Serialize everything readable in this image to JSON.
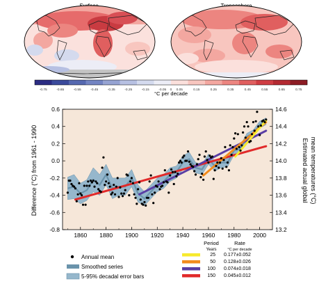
{
  "maps": {
    "left_title": "Surface",
    "right_title": "Troposphere",
    "colorbar_label": "°C per decade",
    "colorbar_ticks": [
      "-0.75",
      "-0.65",
      "-0.55",
      "-0.45",
      "-0.35",
      "-0.25",
      "-0.15",
      "-0.05",
      "0",
      "0.05",
      "0.15",
      "0.25",
      "0.35",
      "0.45",
      "0.55",
      "0.65",
      "0.75"
    ],
    "colorbar_colors": [
      "#2b2c83",
      "#3b4a9c",
      "#5568b0",
      "#7384c2",
      "#96a3d2",
      "#b7c0e2",
      "#d4daee",
      "#ecedf6",
      "#fbe0dc",
      "#f8c6bf",
      "#f3a7a0",
      "#ec8580",
      "#e05f5f",
      "#cf3d43",
      "#b42a32",
      "#8c1c24"
    ]
  },
  "chart_data": {
    "type": "scatter",
    "xlabel": "",
    "ylabel": "Difference (°C) from 1961 - 1990",
    "ylabel_right": "Estimated actual global mean temperatures (°C)",
    "xlim": [
      1846,
      2010
    ],
    "ylim": [
      -0.8,
      0.6
    ],
    "ylim_right": [
      13.2,
      14.6
    ],
    "xticks": [
      "1860",
      "1880",
      "1900",
      "1920",
      "1940",
      "1960",
      "1980",
      "2000"
    ],
    "yticks": [
      "-0.8",
      "-0.6",
      "-0.4",
      "-0.2",
      "0.0",
      "0.2",
      "0.4",
      "0.6"
    ],
    "yticks_right": [
      "13.2",
      "13.4",
      "13.6",
      "13.8",
      "14.0",
      "14.2",
      "14.4",
      "14.6"
    ],
    "annual_mean": {
      "x": [
        1850,
        1851,
        1852,
        1853,
        1854,
        1855,
        1856,
        1857,
        1858,
        1859,
        1860,
        1861,
        1862,
        1863,
        1864,
        1865,
        1866,
        1867,
        1868,
        1869,
        1870,
        1871,
        1872,
        1873,
        1874,
        1875,
        1876,
        1877,
        1878,
        1879,
        1880,
        1881,
        1882,
        1883,
        1884,
        1885,
        1886,
        1887,
        1888,
        1889,
        1890,
        1891,
        1892,
        1893,
        1894,
        1895,
        1896,
        1897,
        1898,
        1899,
        1900,
        1901,
        1902,
        1903,
        1904,
        1905,
        1906,
        1907,
        1908,
        1909,
        1910,
        1911,
        1912,
        1913,
        1914,
        1915,
        1916,
        1917,
        1918,
        1919,
        1920,
        1921,
        1922,
        1923,
        1924,
        1925,
        1926,
        1927,
        1928,
        1929,
        1930,
        1931,
        1932,
        1933,
        1934,
        1935,
        1936,
        1937,
        1938,
        1939,
        1940,
        1941,
        1942,
        1943,
        1944,
        1945,
        1946,
        1947,
        1948,
        1949,
        1950,
        1951,
        1952,
        1953,
        1954,
        1955,
        1956,
        1957,
        1958,
        1959,
        1960,
        1961,
        1962,
        1963,
        1964,
        1965,
        1966,
        1967,
        1968,
        1969,
        1970,
        1971,
        1972,
        1973,
        1974,
        1975,
        1976,
        1977,
        1978,
        1979,
        1980,
        1981,
        1982,
        1983,
        1984,
        1985,
        1986,
        1987,
        1988,
        1989,
        1990,
        1991,
        1992,
        1993,
        1994,
        1995,
        1996,
        1997,
        1998,
        1999,
        2000,
        2001,
        2002,
        2003,
        2004,
        2005
      ],
      "y": [
        -0.37,
        -0.23,
        -0.23,
        -0.27,
        -0.29,
        -0.3,
        -0.32,
        -0.47,
        -0.39,
        -0.26,
        -0.38,
        -0.4,
        -0.51,
        -0.29,
        -0.51,
        -0.29,
        -0.24,
        -0.29,
        -0.23,
        -0.25,
        -0.23,
        -0.3,
        -0.24,
        -0.26,
        -0.33,
        -0.35,
        -0.36,
        -0.08,
        0.04,
        -0.28,
        -0.24,
        -0.16,
        -0.26,
        -0.3,
        -0.39,
        -0.37,
        -0.28,
        -0.39,
        -0.3,
        -0.2,
        -0.42,
        -0.31,
        -0.38,
        -0.41,
        -0.38,
        -0.34,
        -0.16,
        -0.17,
        -0.4,
        -0.24,
        -0.2,
        -0.26,
        -0.39,
        -0.43,
        -0.5,
        -0.33,
        -0.25,
        -0.45,
        -0.5,
        -0.51,
        -0.48,
        -0.52,
        -0.43,
        -0.43,
        -0.24,
        -0.17,
        -0.39,
        -0.49,
        -0.37,
        -0.29,
        -0.3,
        -0.24,
        -0.33,
        -0.3,
        -0.29,
        -0.25,
        -0.11,
        -0.24,
        -0.25,
        -0.37,
        -0.17,
        -0.1,
        -0.13,
        -0.27,
        -0.13,
        -0.18,
        -0.15,
        -0.02,
        0.0,
        -0.02,
        0.04,
        0.06,
        0.0,
        0.0,
        0.11,
        -0.01,
        -0.04,
        -0.06,
        -0.07,
        -0.12,
        -0.16,
        -0.04,
        0.02,
        0.07,
        -0.19,
        -0.15,
        -0.22,
        0.05,
        0.11,
        0.01,
        -0.02,
        0.06,
        0.04,
        0.05,
        -0.21,
        -0.11,
        -0.06,
        -0.02,
        -0.08,
        -0.02,
        0.03,
        -0.09,
        0.01,
        0.16,
        -0.07,
        -0.02,
        -0.11,
        0.18,
        0.07,
        0.16,
        0.26,
        0.32,
        0.14,
        0.31,
        0.16,
        0.12,
        0.18,
        0.33,
        0.4,
        0.27,
        0.45,
        0.4,
        0.22,
        0.23,
        0.31,
        0.45,
        0.35,
        0.46,
        0.57,
        0.4,
        0.3,
        0.41,
        0.46,
        0.47,
        0.45,
        0.48
      ],
      "color": "#000000"
    },
    "smoothed_series": {
      "x": [
        1850,
        1855,
        1860,
        1865,
        1870,
        1875,
        1880,
        1885,
        1890,
        1895,
        1900,
        1905,
        1910,
        1915,
        1920,
        1925,
        1930,
        1935,
        1940,
        1945,
        1950,
        1955,
        1960,
        1965,
        1970,
        1975,
        1980,
        1985,
        1990,
        1995,
        2000,
        2005
      ],
      "y": [
        -0.32,
        -0.3,
        -0.38,
        -0.34,
        -0.22,
        -0.28,
        -0.16,
        -0.32,
        -0.3,
        -0.3,
        -0.2,
        -0.38,
        -0.44,
        -0.36,
        -0.28,
        -0.24,
        -0.16,
        -0.13,
        -0.02,
        0.02,
        -0.08,
        -0.1,
        0.02,
        -0.06,
        -0.02,
        -0.02,
        0.12,
        0.14,
        0.28,
        0.32,
        0.42,
        0.46
      ],
      "error_low": [
        -0.45,
        -0.44,
        -0.5,
        -0.46,
        -0.36,
        -0.4,
        -0.28,
        -0.44,
        -0.4,
        -0.4,
        -0.3,
        -0.48,
        -0.52,
        -0.44,
        -0.36,
        -0.32,
        -0.24,
        -0.2,
        -0.1,
        -0.06,
        -0.14,
        -0.16,
        -0.04,
        -0.12,
        -0.08,
        -0.07,
        0.07,
        0.1,
        0.24,
        0.28,
        0.38,
        0.42
      ],
      "error_high": [
        -0.19,
        -0.16,
        -0.26,
        -0.22,
        -0.08,
        -0.16,
        -0.04,
        -0.2,
        -0.2,
        -0.2,
        -0.1,
        -0.28,
        -0.36,
        -0.28,
        -0.2,
        -0.16,
        -0.08,
        -0.06,
        0.06,
        0.1,
        -0.02,
        -0.04,
        0.08,
        0.0,
        0.04,
        0.03,
        0.17,
        0.18,
        0.32,
        0.36,
        0.46,
        0.5
      ],
      "line_color": "#6a93ab",
      "band_color": "#96b7cc"
    },
    "trend_lines": [
      {
        "period": "25",
        "rate": "0.177±0.052",
        "x": [
          1981,
          2005
        ],
        "y": [
          0.05,
          0.47
        ],
        "color": "#f7ea2d"
      },
      {
        "period": "50",
        "rate": "0.128±0.026",
        "x": [
          1956,
          2005
        ],
        "y": [
          -0.17,
          0.45
        ],
        "color": "#f28c1e"
      },
      {
        "period": "100",
        "rate": "0.074±0.018",
        "x": [
          1906,
          2005
        ],
        "y": [
          -0.39,
          0.35
        ],
        "color": "#5a3ea5"
      },
      {
        "period": "150",
        "rate": "0.045±0.012",
        "x": [
          1856,
          2005
        ],
        "y": [
          -0.45,
          0.17
        ],
        "color": "#e12a2a"
      }
    ],
    "legend": {
      "placement": "bottom",
      "items": [
        "Annual mean",
        "Smoothed series",
        "5-95% decadal error bars"
      ],
      "table_header_period": "Period",
      "table_header_period_unit": "Years",
      "table_header_rate": "Rate",
      "table_header_rate_unit": "°C per decade"
    },
    "plot_background": "#f6e7d9"
  }
}
